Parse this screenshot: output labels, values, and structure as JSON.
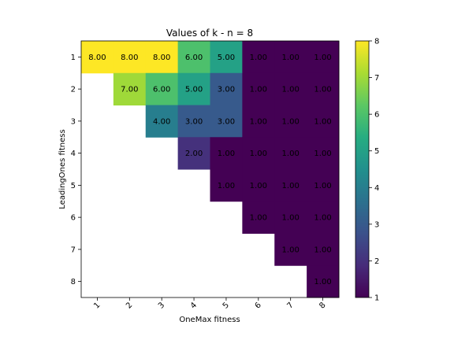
{
  "chart_data": {
    "type": "heatmap",
    "title": "Values of k - n = 8",
    "xlabel": "OneMax fitness",
    "ylabel": "LeadingOnes fitness",
    "x_categories": [
      "1",
      "2",
      "3",
      "4",
      "5",
      "6",
      "7",
      "8"
    ],
    "y_categories": [
      "1",
      "2",
      "3",
      "4",
      "5",
      "6",
      "7",
      "8"
    ],
    "values": [
      [
        8,
        8,
        8,
        6,
        5,
        1,
        1,
        1
      ],
      [
        null,
        7,
        6,
        5,
        3,
        1,
        1,
        1
      ],
      [
        null,
        null,
        4,
        3,
        3,
        1,
        1,
        1
      ],
      [
        null,
        null,
        null,
        2,
        1,
        1,
        1,
        1
      ],
      [
        null,
        null,
        null,
        null,
        1,
        1,
        1,
        1
      ],
      [
        null,
        null,
        null,
        null,
        null,
        1,
        1,
        1
      ],
      [
        null,
        null,
        null,
        null,
        null,
        null,
        1,
        1
      ],
      [
        null,
        null,
        null,
        null,
        null,
        null,
        null,
        1
      ]
    ],
    "cell_labels": [
      [
        "8.00",
        "8.00",
        "8.00",
        "6.00",
        "5.00",
        "1.00",
        "1.00",
        "1.00"
      ],
      [
        null,
        "7.00",
        "6.00",
        "5.00",
        "3.00",
        "1.00",
        "1.00",
        "1.00"
      ],
      [
        null,
        null,
        "4.00",
        "3.00",
        "3.00",
        "1.00",
        "1.00",
        "1.00"
      ],
      [
        null,
        null,
        null,
        "2.00",
        "1.00",
        "1.00",
        "1.00",
        "1.00"
      ],
      [
        null,
        null,
        null,
        null,
        "1.00",
        "1.00",
        "1.00",
        "1.00"
      ],
      [
        null,
        null,
        null,
        null,
        null,
        "1.00",
        "1.00",
        "1.00"
      ],
      [
        null,
        null,
        null,
        null,
        null,
        null,
        "1.00",
        "1.00"
      ],
      [
        null,
        null,
        null,
        null,
        null,
        null,
        null,
        "1.00"
      ]
    ],
    "colorbar": {
      "min": 1,
      "max": 8,
      "ticks": [
        "1",
        "2",
        "3",
        "4",
        "5",
        "6",
        "7",
        "8"
      ]
    },
    "colormap": "viridis",
    "x_tick_rotation_deg": 45
  }
}
